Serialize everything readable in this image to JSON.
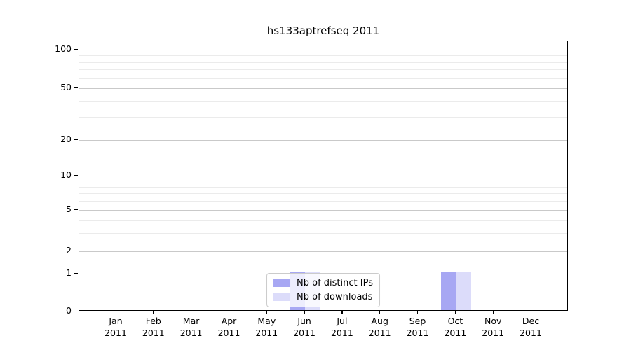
{
  "title": "hs133aptrefseq 2011",
  "legend": {
    "items": [
      {
        "label": "Nb of distinct IPs",
        "color": "#a7a7f3"
      },
      {
        "label": "Nb of downloads",
        "color": "#dcdcfa"
      }
    ]
  },
  "chart_data": {
    "type": "bar",
    "title": "hs133aptrefseq 2011",
    "categories": [
      "Jan 2011",
      "Feb 2011",
      "Mar 2011",
      "Apr 2011",
      "May 2011",
      "Jun 2011",
      "Jul 2011",
      "Aug 2011",
      "Sep 2011",
      "Oct 2011",
      "Nov 2011",
      "Dec 2011"
    ],
    "series": [
      {
        "name": "Nb of distinct IPs",
        "color": "#a7a7f3",
        "values": [
          0,
          0,
          0,
          0,
          0,
          1,
          0,
          0,
          0,
          1,
          0,
          0
        ]
      },
      {
        "name": "Nb of downloads",
        "color": "#dcdcfa",
        "values": [
          0,
          0,
          0,
          0,
          0,
          1,
          0,
          0,
          0,
          1,
          0,
          0
        ]
      }
    ],
    "yscale": "symlog",
    "yticks": [
      0,
      1,
      2,
      5,
      10,
      20,
      50,
      100
    ],
    "yminorticks": [
      3,
      4,
      6,
      7,
      8,
      9,
      30,
      40,
      60,
      70,
      80,
      90
    ],
    "ylim": [
      0,
      100
    ],
    "grid": true,
    "legend_position": "lower center"
  }
}
